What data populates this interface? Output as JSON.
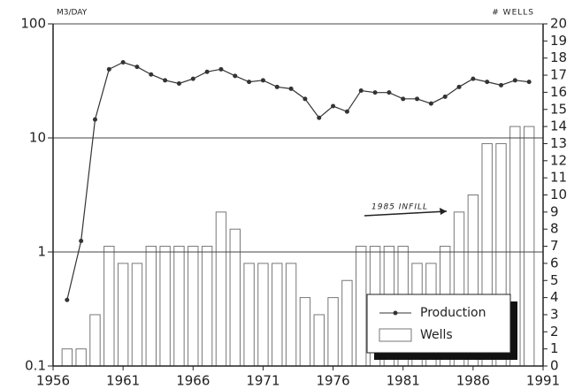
{
  "chart_data": {
    "type": "combo",
    "ylabel": "M3/DAY",
    "y2label": "# WELLS",
    "annotation": "1985 INFILL",
    "x": [
      1957,
      1958,
      1959,
      1960,
      1961,
      1962,
      1963,
      1964,
      1965,
      1966,
      1967,
      1968,
      1969,
      1970,
      1971,
      1972,
      1973,
      1974,
      1975,
      1976,
      1977,
      1978,
      1979,
      1980,
      1981,
      1982,
      1983,
      1984,
      1985,
      1986,
      1987,
      1988,
      1989,
      1990
    ],
    "series": [
      {
        "name": "Production",
        "type": "line",
        "color": "#333333",
        "values": [
          0.38,
          1.25,
          14.5,
          40,
          46,
          42,
          36,
          32,
          30,
          33,
          38,
          40,
          35,
          31,
          32,
          28,
          27,
          22,
          15,
          19,
          17,
          26,
          25,
          25,
          22,
          22,
          20,
          23,
          28,
          33,
          31,
          29,
          32,
          31
        ]
      },
      {
        "name": "Wells",
        "type": "bar",
        "axis": "y2",
        "color": "#ffffff",
        "values": [
          1,
          1,
          3,
          7,
          6,
          6,
          7,
          7,
          7,
          7,
          7,
          9,
          8,
          6,
          6,
          6,
          6,
          4,
          3,
          4,
          5,
          7,
          7,
          7,
          7,
          6,
          6,
          7,
          9,
          10,
          13,
          13,
          14,
          14
        ]
      }
    ],
    "xlim": [
      1956,
      1991
    ],
    "xticks": [
      1956,
      1961,
      1966,
      1971,
      1976,
      1981,
      1986,
      1991
    ],
    "ylim": [
      0.1,
      100
    ],
    "yticks": [
      0.1,
      1,
      10,
      100
    ],
    "ylog": true,
    "y2lim": [
      0,
      20
    ],
    "y2ticks": [
      0,
      1,
      2,
      3,
      4,
      5,
      6,
      7,
      8,
      9,
      10,
      11,
      12,
      13,
      14,
      15,
      16,
      17,
      18,
      19,
      20
    ],
    "grid": true,
    "legend": "lower right"
  }
}
